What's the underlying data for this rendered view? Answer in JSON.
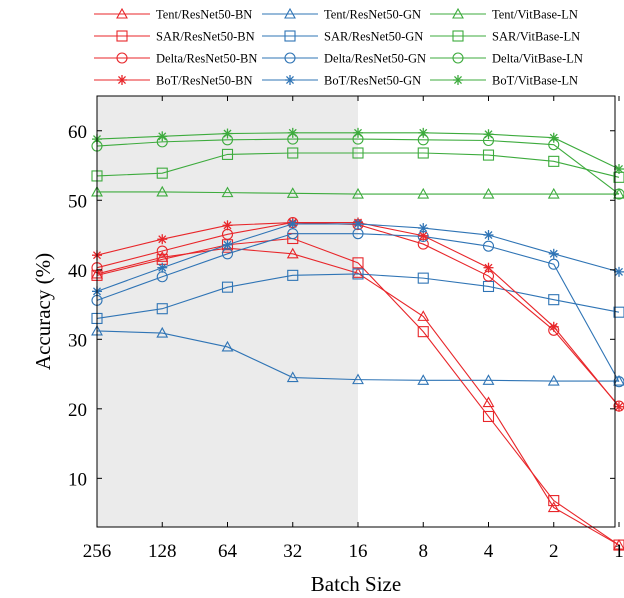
{
  "chart_data": {
    "type": "line",
    "title": "",
    "xlabel": "Batch Size",
    "ylabel": "Accuracy (%)",
    "x": [
      "256",
      "128",
      "64",
      "32",
      "16",
      "8",
      "4",
      "2",
      "1"
    ],
    "yticks": [
      10,
      20,
      30,
      40,
      50,
      60
    ],
    "ylim": [
      3,
      65
    ],
    "shaded_region": {
      "from": "256",
      "to": "16",
      "color": "#ebebeb"
    },
    "grid": false,
    "legend_position": "top",
    "colors": {
      "BN": "#e8262a",
      "GN": "#2f74b5",
      "LN": "#3dab3d"
    },
    "series": [
      {
        "name": "Tent/ResNet50-BN",
        "group": "BN",
        "marker": "triangle",
        "values": [
          39.4,
          41.8,
          43.1,
          42.3,
          39.5,
          33.3,
          20.9,
          5.8,
          0.4
        ]
      },
      {
        "name": "Tent/ResNet50-GN",
        "group": "GN",
        "marker": "triangle",
        "values": [
          31.2,
          30.9,
          28.9,
          24.5,
          24.2,
          24.1,
          24.1,
          24.0,
          24.0
        ]
      },
      {
        "name": "Tent/VitBase-LN",
        "group": "LN",
        "marker": "triangle",
        "values": [
          51.2,
          51.2,
          51.1,
          51.0,
          50.9,
          50.9,
          50.9,
          50.9,
          50.9
        ]
      },
      {
        "name": "SAR/ResNet50-BN",
        "group": "BN",
        "marker": "square",
        "values": [
          39.2,
          41.5,
          43.6,
          44.5,
          41.0,
          31.1,
          18.9,
          6.8,
          0.4
        ]
      },
      {
        "name": "SAR/ResNet50-GN",
        "group": "GN",
        "marker": "square",
        "values": [
          33.0,
          34.4,
          37.5,
          39.2,
          39.4,
          38.8,
          37.6,
          35.7,
          33.9
        ]
      },
      {
        "name": "SAR/VitBase-LN",
        "group": "LN",
        "marker": "square",
        "values": [
          53.5,
          53.9,
          56.6,
          56.8,
          56.8,
          56.8,
          56.5,
          55.6,
          53.3
        ]
      },
      {
        "name": "Delta/ResNet50-BN",
        "group": "BN",
        "marker": "circle",
        "values": [
          40.3,
          42.7,
          45.1,
          46.8,
          46.5,
          43.7,
          39.1,
          31.3,
          20.4
        ]
      },
      {
        "name": "Delta/ResNet50-GN",
        "group": "GN",
        "marker": "circle",
        "values": [
          35.6,
          39.0,
          42.3,
          45.2,
          45.2,
          44.8,
          43.4,
          40.8,
          23.9
        ]
      },
      {
        "name": "Delta/VitBase-LN",
        "group": "LN",
        "marker": "circle",
        "values": [
          57.8,
          58.4,
          58.7,
          58.8,
          58.8,
          58.7,
          58.6,
          58.0,
          50.9
        ]
      },
      {
        "name": "BoT/ResNet50-BN",
        "group": "BN",
        "marker": "asterisk",
        "values": [
          42.1,
          44.4,
          46.4,
          46.8,
          46.8,
          44.9,
          40.3,
          31.8,
          20.3
        ]
      },
      {
        "name": "BoT/ResNet50-GN",
        "group": "GN",
        "marker": "asterisk",
        "values": [
          36.9,
          40.3,
          43.6,
          46.6,
          46.6,
          46.0,
          45.0,
          42.3,
          39.7
        ]
      },
      {
        "name": "BoT/VitBase-LN",
        "group": "LN",
        "marker": "asterisk",
        "values": [
          58.8,
          59.2,
          59.6,
          59.7,
          59.7,
          59.7,
          59.5,
          59.0,
          54.5
        ]
      }
    ]
  }
}
